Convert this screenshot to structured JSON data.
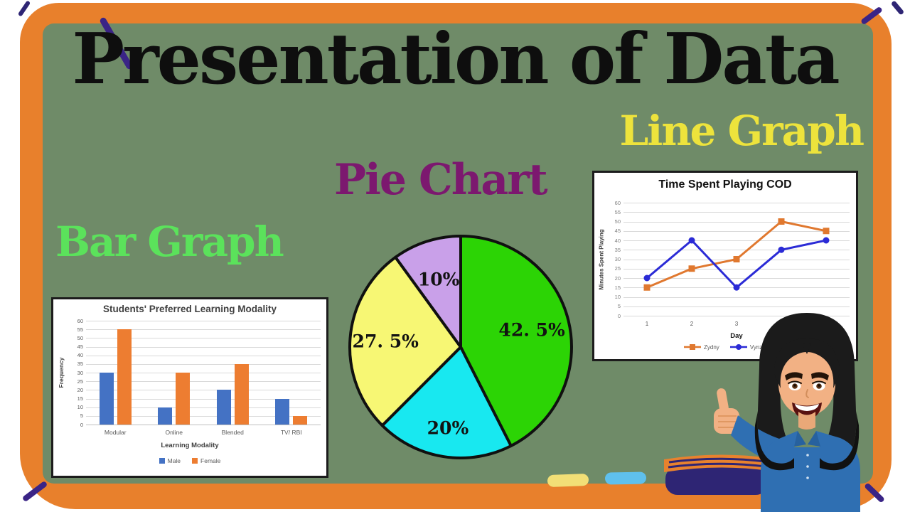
{
  "title": "Presentation of Data",
  "section_labels": {
    "bar": "Bar Graph",
    "pie": "Pie Chart",
    "line": "Line Graph"
  },
  "colors": {
    "frame": "#E8802C",
    "board": "#6F8B68",
    "corner_accent": "#3A2486",
    "title_text": "#0E0E0E",
    "bar_label": "#5BE25B",
    "pie_label": "#7C186F",
    "line_label": "#EDE33C"
  },
  "chart_data": [
    {
      "id": "bar_chart",
      "type": "bar",
      "title": "Students' Preferred Learning Modality",
      "xlabel": "Learning Modality",
      "ylabel": "Frequency",
      "categories": [
        "Modular",
        "Online",
        "Blended",
        "TV/ RBI"
      ],
      "series": [
        {
          "name": "Male",
          "color": "#4472C4",
          "values": [
            30,
            10,
            20,
            15
          ]
        },
        {
          "name": "Female",
          "color": "#ED7D31",
          "values": [
            55,
            30,
            35,
            5
          ]
        }
      ],
      "ylim": [
        0,
        60
      ],
      "ytick_step": 5,
      "grid": true,
      "legend_position": "bottom"
    },
    {
      "id": "pie_chart",
      "type": "pie",
      "slices": [
        {
          "label": "42. 5%",
          "value": 42.5,
          "color": "#2CD405"
        },
        {
          "label": "20%",
          "value": 20,
          "color": "#18E8F0"
        },
        {
          "label": "27. 5%",
          "value": 27.5,
          "color": "#F7F774"
        },
        {
          "label": "10%",
          "value": 10,
          "color": "#C9A0E9"
        }
      ],
      "start_angle_deg": 0,
      "direction": "clockwise",
      "outline_color": "#101010"
    },
    {
      "id": "line_chart",
      "type": "line",
      "title": "Time Spent Playing COD",
      "xlabel": "Day",
      "ylabel": "Minutes Spent Playing",
      "x": [
        1,
        2,
        3,
        4,
        5
      ],
      "series": [
        {
          "name": "Zydny",
          "color": "#E0782F",
          "marker": "square",
          "values": [
            15,
            25,
            30,
            50,
            45
          ]
        },
        {
          "name": "Vynznt",
          "color": "#2B2BD6",
          "marker": "circle",
          "values": [
            20,
            40,
            15,
            35,
            40
          ]
        }
      ],
      "ylim": [
        0,
        60
      ],
      "ytick_step": 5,
      "grid": true,
      "legend_position": "bottom"
    }
  ],
  "decorations": {
    "avatar": "teacher-thumbs-up-avatar",
    "chalk": [
      {
        "color": "#F2DF76"
      },
      {
        "color": "#5FC0ED"
      }
    ],
    "book": {
      "cover": "#E8822E",
      "pages": "#2E2574"
    }
  }
}
